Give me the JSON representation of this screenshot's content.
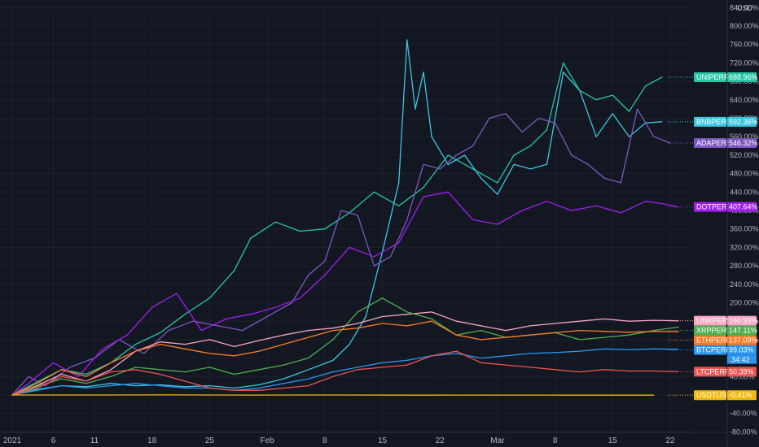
{
  "chart_data": {
    "type": "line",
    "currency": "USD",
    "ylim": [
      -80,
      840
    ],
    "grid": true,
    "y_ticks": [
      -80,
      -40,
      0,
      40,
      80,
      120,
      160,
      200,
      240,
      280,
      320,
      360,
      400,
      440,
      480,
      520,
      560,
      600,
      640,
      680,
      720,
      760,
      800,
      840
    ],
    "y_tick_labels": [
      "-80.00%",
      "-40.00%",
      "0.00%",
      "40.00%",
      "80.00%",
      "120.00%",
      "160.00%",
      "200.00%",
      "240.00%",
      "280.00%",
      "320.00%",
      "360.00%",
      "400.00%",
      "440.00%",
      "480.00%",
      "520.00%",
      "560.00%",
      "600.00%",
      "640.00%",
      "680.00%",
      "720.00%",
      "760.00%",
      "800.00%",
      "840.00%"
    ],
    "x_ticks": [
      {
        "day": 1,
        "label": "2021"
      },
      {
        "day": 6,
        "label": "6"
      },
      {
        "day": 11,
        "label": "11"
      },
      {
        "day": 18,
        "label": "18"
      },
      {
        "day": 25,
        "label": "25"
      },
      {
        "day": 32,
        "label": "Feb"
      },
      {
        "day": 39,
        "label": "8"
      },
      {
        "day": 46,
        "label": "15"
      },
      {
        "day": 53,
        "label": "22"
      },
      {
        "day": 60,
        "label": "Mar"
      },
      {
        "day": 67,
        "label": "8"
      },
      {
        "day": 74,
        "label": "15"
      },
      {
        "day": 81,
        "label": "22"
      }
    ],
    "x_range_days": [
      1,
      82
    ],
    "countdown": "34:42",
    "series": [
      {
        "name": "UNIPERP",
        "last_label": "688.96%",
        "color": "#26c6a6",
        "days": [
          1,
          4,
          7,
          10,
          13,
          16,
          19,
          22,
          25,
          28,
          30,
          33,
          36,
          39,
          42,
          45,
          48,
          51,
          54,
          57,
          60,
          62,
          64,
          66,
          68,
          70,
          72,
          74,
          76,
          78,
          80
        ],
        "values": [
          0,
          28,
          55,
          45,
          70,
          110,
          135,
          175,
          210,
          270,
          340,
          375,
          355,
          360,
          395,
          440,
          410,
          450,
          520,
          490,
          460,
          520,
          540,
          575,
          720,
          660,
          640,
          650,
          615,
          670,
          688.96
        ]
      },
      {
        "name": "BNBPERP",
        "last_label": "592.36%",
        "color": "#3bc6e0",
        "days": [
          1,
          4,
          7,
          10,
          13,
          16,
          19,
          22,
          25,
          28,
          31,
          34,
          37,
          40,
          42,
          44,
          46,
          48,
          49,
          50,
          51,
          52,
          54,
          56,
          58,
          60,
          62,
          64,
          66,
          68,
          70,
          72,
          74,
          76,
          78,
          80
        ],
        "values": [
          0,
          12,
          20,
          18,
          25,
          20,
          22,
          18,
          20,
          15,
          22,
          35,
          55,
          75,
          110,
          170,
          310,
          460,
          770,
          620,
          700,
          560,
          500,
          520,
          470,
          435,
          500,
          490,
          500,
          700,
          660,
          560,
          610,
          560,
          590,
          592.36
        ]
      },
      {
        "name": "ADAPERP",
        "last_label": "546.32%",
        "color": "#7e57c2",
        "days": [
          1,
          3,
          5,
          8,
          11,
          14,
          17,
          20,
          23,
          26,
          29,
          32,
          35,
          37,
          39,
          41,
          43,
          45,
          47,
          49,
          51,
          53,
          55,
          57,
          59,
          61,
          63,
          65,
          67,
          69,
          71,
          73,
          75,
          77,
          79,
          81
        ],
        "values": [
          0,
          40,
          20,
          60,
          80,
          120,
          90,
          140,
          160,
          150,
          140,
          170,
          200,
          260,
          290,
          400,
          390,
          280,
          300,
          380,
          500,
          490,
          520,
          540,
          600,
          610,
          570,
          600,
          590,
          520,
          500,
          470,
          460,
          620,
          560,
          546.32
        ]
      },
      {
        "name": "DOTPERP",
        "last_label": "407.64%",
        "color": "#a020f0",
        "days": [
          1,
          3,
          6,
          9,
          12,
          15,
          18,
          21,
          24,
          27,
          30,
          33,
          36,
          39,
          42,
          45,
          48,
          51,
          54,
          57,
          60,
          63,
          66,
          69,
          72,
          75,
          78,
          80,
          82
        ],
        "values": [
          0,
          25,
          70,
          40,
          100,
          130,
          190,
          220,
          140,
          165,
          175,
          190,
          210,
          260,
          320,
          300,
          330,
          430,
          440,
          380,
          370,
          400,
          420,
          400,
          410,
          395,
          420,
          415,
          407.64
        ]
      },
      {
        "name": "LINKPERP",
        "last_label": "160.93%",
        "color": "#f8a5c2",
        "days": [
          1,
          4,
          7,
          10,
          13,
          16,
          19,
          22,
          25,
          28,
          31,
          34,
          37,
          40,
          43,
          46,
          49,
          52,
          55,
          58,
          61,
          64,
          67,
          70,
          73,
          76,
          79,
          82
        ],
        "values": [
          0,
          20,
          45,
          30,
          55,
          95,
          115,
          110,
          120,
          105,
          118,
          130,
          140,
          145,
          155,
          170,
          175,
          180,
          160,
          150,
          140,
          150,
          155,
          160,
          165,
          160,
          162,
          160.93
        ]
      },
      {
        "name": "XRPPERP",
        "last_label": "147.11%",
        "color": "#4caf50",
        "days": [
          1,
          4,
          7,
          10,
          13,
          16,
          19,
          22,
          25,
          28,
          31,
          34,
          37,
          40,
          43,
          46,
          49,
          52,
          55,
          58,
          61,
          64,
          67,
          70,
          73,
          76,
          79,
          82
        ],
        "values": [
          0,
          18,
          35,
          25,
          40,
          60,
          55,
          50,
          60,
          45,
          55,
          65,
          80,
          120,
          180,
          210,
          180,
          165,
          130,
          140,
          125,
          130,
          135,
          120,
          125,
          130,
          140,
          147.11
        ]
      },
      {
        "name": "ETHPERP",
        "last_label": "137.09%",
        "color": "#ff7b25",
        "days": [
          1,
          4,
          7,
          10,
          13,
          16,
          19,
          22,
          25,
          28,
          31,
          34,
          37,
          40,
          43,
          46,
          49,
          52,
          55,
          58,
          61,
          64,
          67,
          70,
          73,
          76,
          79,
          82
        ],
        "values": [
          0,
          25,
          55,
          40,
          70,
          95,
          110,
          100,
          90,
          85,
          95,
          110,
          125,
          140,
          145,
          155,
          150,
          160,
          130,
          120,
          125,
          130,
          135,
          140,
          138,
          136,
          138,
          137.09
        ]
      },
      {
        "name": "BTCPERP",
        "last_label": "99.03%",
        "color": "#2b95f0",
        "days": [
          1,
          4,
          7,
          10,
          13,
          16,
          19,
          22,
          25,
          28,
          31,
          34,
          37,
          40,
          43,
          46,
          49,
          52,
          55,
          58,
          61,
          64,
          67,
          70,
          73,
          76,
          79,
          82
        ],
        "values": [
          0,
          10,
          20,
          15,
          20,
          25,
          20,
          15,
          15,
          10,
          15,
          25,
          35,
          50,
          60,
          70,
          75,
          85,
          90,
          80,
          85,
          90,
          92,
          95,
          100,
          98,
          100,
          99.03
        ]
      },
      {
        "name": "LTCPERP",
        "last_label": "50.39%",
        "color": "#ef5350",
        "days": [
          1,
          4,
          7,
          10,
          13,
          16,
          19,
          22,
          25,
          28,
          31,
          34,
          37,
          40,
          43,
          46,
          49,
          52,
          55,
          58,
          61,
          64,
          67,
          70,
          73,
          76,
          79,
          82
        ],
        "values": [
          0,
          15,
          40,
          30,
          50,
          55,
          45,
          30,
          15,
          10,
          10,
          15,
          20,
          40,
          55,
          60,
          65,
          85,
          95,
          70,
          65,
          60,
          55,
          50,
          55,
          52,
          52,
          50.39
        ]
      },
      {
        "name": "USDTUSD",
        "last_label": "-0.41%",
        "color": "#f0b90b",
        "days": [
          1,
          10,
          20,
          30,
          40,
          50,
          60,
          70,
          79
        ],
        "values": [
          0,
          0,
          0.1,
          -0.2,
          0,
          -0.3,
          -0.2,
          -0.4,
          -0.41
        ]
      }
    ]
  }
}
